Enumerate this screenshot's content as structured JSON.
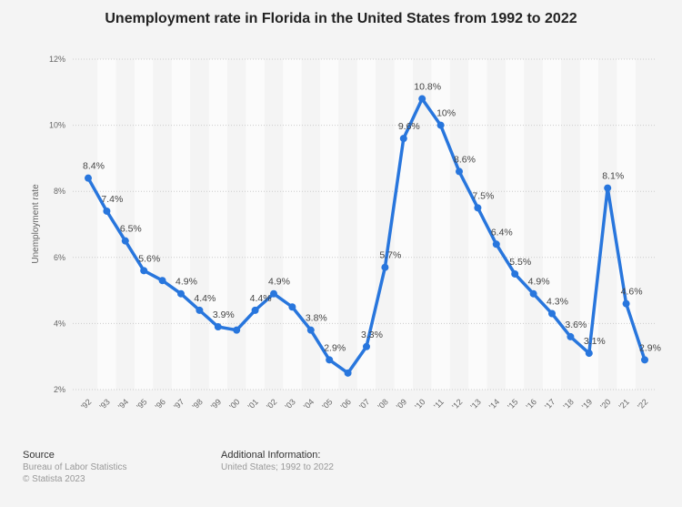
{
  "chart_data": {
    "type": "line",
    "title": "Unemployment rate in Florida in the United States from 1992 to 2022",
    "ylabel": "Unemployment rate",
    "xlabel": "",
    "ylim": [
      2,
      12
    ],
    "yticks": [
      "2%",
      "4%",
      "6%",
      "8%",
      "10%",
      "12%"
    ],
    "grid": true,
    "color": "#2876dd",
    "categories": [
      "'92",
      "'93",
      "'94",
      "'95",
      "'96",
      "'97",
      "'98",
      "'99",
      "'00",
      "'01",
      "'02",
      "'03",
      "'04",
      "'05",
      "'06",
      "'07",
      "'08",
      "'09",
      "'10",
      "'11",
      "'12",
      "'13",
      "'14",
      "'15",
      "'16",
      "'17",
      "'18",
      "'19",
      "'20",
      "'21",
      "'22"
    ],
    "values": [
      8.4,
      7.4,
      6.5,
      5.6,
      5.3,
      4.9,
      4.4,
      3.9,
      3.8,
      4.4,
      4.9,
      4.5,
      3.8,
      2.9,
      2.5,
      3.3,
      5.7,
      9.6,
      10.8,
      10,
      8.6,
      7.5,
      6.4,
      5.5,
      4.9,
      4.3,
      3.6,
      3.1,
      8.1,
      4.6,
      2.9
    ],
    "data_labels": [
      "8.4%",
      "7.4%",
      "6.5%",
      "5.6%",
      "",
      "4.9%",
      "4.4%",
      "3.9%",
      "",
      "4.4%",
      "4.9%",
      "",
      "3.8%",
      "2.9%",
      "",
      "3.3%",
      "5.7%",
      "9.6%",
      "10.8%",
      "10%",
      "8.6%",
      "7.5%",
      "6.4%",
      "5.5%",
      "4.9%",
      "4.3%",
      "3.6%",
      "3.1%",
      "8.1%",
      "4.6%",
      "2.9%"
    ]
  },
  "footer": {
    "source_heading": "Source",
    "source": "Bureau of Labor Statistics",
    "copyright": "© Statista 2023",
    "info_heading": "Additional Information:",
    "info": "United States; 1992 to 2022"
  }
}
